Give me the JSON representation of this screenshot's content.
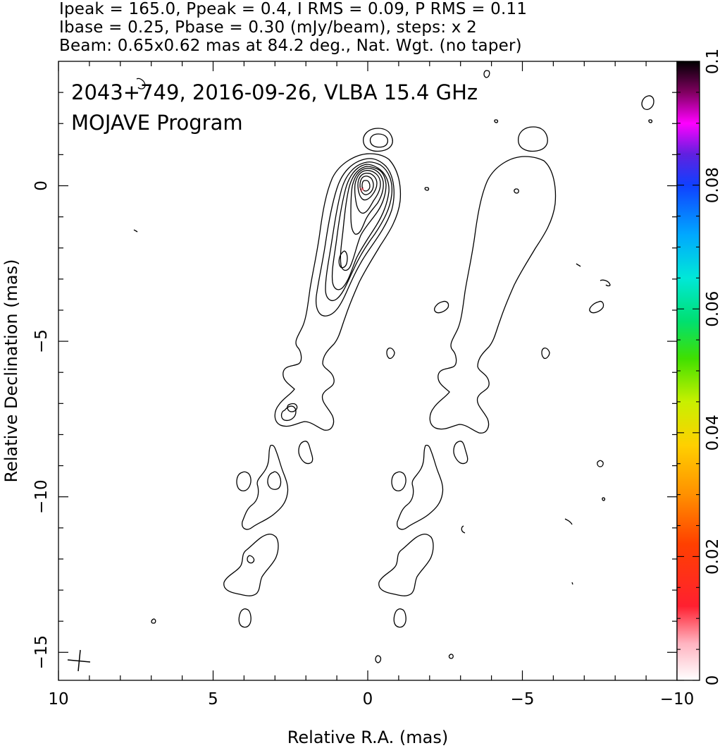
{
  "header": {
    "line1": "Ipeak = 165.0, Ppeak = 0.4, I RMS = 0.09, P RMS = 0.11",
    "line2": "Ibase = 0.25, Pbase = 0.30 (mJy/beam), steps: x 2",
    "line3": "Beam: 0.65x0.62 mas at 84.2 deg., Nat. Wgt. (no taper)"
  },
  "chart_data": {
    "type": "contour",
    "title": "2043+749, 2016-09-26, VLBA 15.4 GHz",
    "subtitle": "MOJAVE Program",
    "xlabel": "Relative R.A. (mas)",
    "ylabel": "Relative Declination (mas)",
    "xlim": [
      10,
      -10
    ],
    "ylim": [
      -15.9,
      4.0
    ],
    "xticks": [
      "10",
      "5",
      "0",
      "−5",
      "−10"
    ],
    "xtick_values": [
      10,
      5,
      0,
      -5,
      -10
    ],
    "yticks": [
      "0",
      "−5",
      "−10",
      "−15"
    ],
    "ytick_values": [
      0,
      -5,
      -10,
      -15
    ],
    "colorbar": {
      "range": [
        0,
        0.1
      ],
      "ticks": [
        "0",
        "0.02",
        "0.04",
        "0.06",
        "0.08",
        "0.1"
      ],
      "tick_values": [
        0,
        0.02,
        0.04,
        0.06,
        0.08,
        0.1
      ]
    },
    "beam": {
      "major_mas": 0.65,
      "minor_mas": 0.62,
      "pa_deg": 84.2
    },
    "peak_position_mas": [
      0,
      0
    ],
    "contour_base_mJy": 0.25,
    "contour_step": 2,
    "contour_levels_count": 10
  }
}
